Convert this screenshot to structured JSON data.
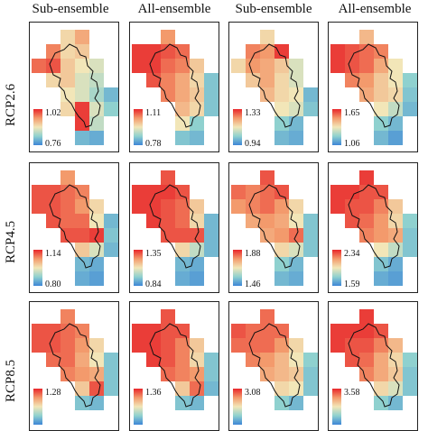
{
  "column_titles": [
    "Sub-ensemble",
    "All-ensemble",
    "Sub-ensemble",
    "All-ensemble"
  ],
  "row_labels": [
    "RCP2.6",
    "RCP4.5",
    "RCP8.5"
  ],
  "colorbars": [
    [
      {
        "max": "1.02",
        "min": "0.76"
      },
      {
        "max": "1.11",
        "min": "0.78"
      },
      {
        "max": "1.33",
        "min": "0.94"
      },
      {
        "max": "1.65",
        "min": "1.06"
      }
    ],
    [
      {
        "max": "1.14",
        "min": "0.80"
      },
      {
        "max": "1.35",
        "min": "0.84"
      },
      {
        "max": "1.88",
        "min": "1.46"
      },
      {
        "max": "2.34",
        "min": "1.59"
      }
    ],
    [
      {
        "max": "1.28",
        "min": ""
      },
      {
        "max": "1.36",
        "min": ""
      },
      {
        "max": "3.08",
        "min": ""
      },
      {
        "max": "3.58",
        "min": ""
      }
    ]
  ],
  "colors": {
    "high": "#e8262b",
    "mid": "#f2e6b8",
    "low": "#3e86d6",
    "outline": "#111111"
  }
}
